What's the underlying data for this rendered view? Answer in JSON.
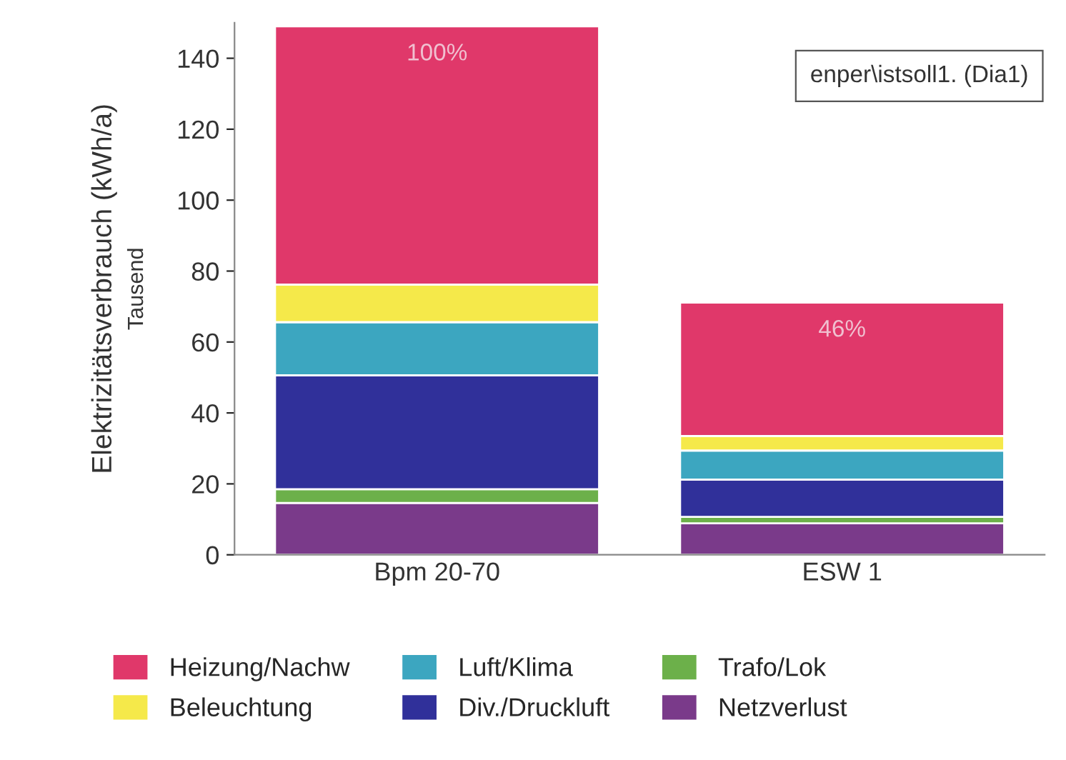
{
  "chart_data": {
    "type": "bar",
    "stacked": true,
    "ylabel": "Elektrizitätsverbrauch (kWh/a)",
    "categories": [
      "Bpm 20-70",
      "ESW 1"
    ],
    "series": [
      {
        "name": "Netzverlust",
        "color": "#7a3a8a",
        "values": [
          14.6,
          8.9
        ]
      },
      {
        "name": "Trafo/Lok",
        "color": "#6cb04a",
        "values": [
          3.9,
          1.8
        ]
      },
      {
        "name": "Div./Druckluft",
        "color": "#30309a",
        "values": [
          32.1,
          10.5
        ]
      },
      {
        "name": "Luft/Klima",
        "color": "#3ca6c0",
        "values": [
          15,
          8.2
        ]
      },
      {
        "name": "Beleuchtung",
        "color": "#f5e94a",
        "values": [
          10.6,
          4.1
        ]
      },
      {
        "name": "Heizung/Nachw",
        "color": "#e0386a",
        "values": [
          72.8,
          37.6
        ]
      }
    ],
    "ylim": [
      0,
      150
    ],
    "yticks": [
      0,
      20,
      40,
      60,
      80,
      100,
      120,
      140
    ],
    "annotations": [
      "Tausend",
      "enper\\istsoll1. (Dia1)",
      "100%",
      "46%"
    ],
    "legend": "bottom",
    "grid": false
  }
}
